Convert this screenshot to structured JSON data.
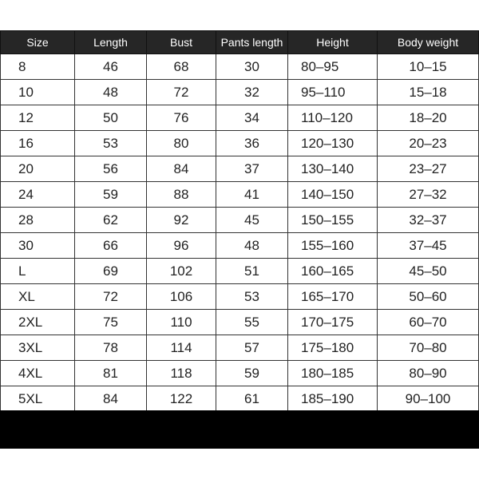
{
  "headers": [
    "Size",
    "Length",
    "Bust",
    "Pants length",
    "Height",
    "Body weight"
  ],
  "rows": [
    [
      "8",
      "46",
      "68",
      "30",
      "80-95",
      "10-15"
    ],
    [
      "10",
      "48",
      "72",
      "32",
      "95-110",
      "15-18"
    ],
    [
      "12",
      "50",
      "76",
      "34",
      "110-120",
      "18-20"
    ],
    [
      "16",
      "53",
      "80",
      "36",
      "120-130",
      "20-23"
    ],
    [
      "20",
      "56",
      "84",
      "37",
      "130-140",
      "23-27"
    ],
    [
      "24",
      "59",
      "88",
      "41",
      "140-150",
      "27-32"
    ],
    [
      "28",
      "62",
      "92",
      "45",
      "150-155",
      "32-37"
    ],
    [
      "30",
      "66",
      "96",
      "48",
      "155-160",
      "37-45"
    ],
    [
      "L",
      "69",
      "102",
      "51",
      "160-165",
      "45-50"
    ],
    [
      "XL",
      "72",
      "106",
      "53",
      "165-170",
      "50-60"
    ],
    [
      "2XL",
      "75",
      "110",
      "55",
      "170-175",
      "60-70"
    ],
    [
      "3XL",
      "78",
      "114",
      "57",
      "175-180",
      "70-80"
    ],
    [
      "4XL",
      "81",
      "118",
      "59",
      "180-185",
      "80-90"
    ],
    [
      "5XL",
      "84",
      "122",
      "61",
      "185-190",
      "90-100"
    ]
  ],
  "colors": {
    "header_bg": "#262626",
    "header_text": "#ffffff",
    "band": "#000000"
  }
}
